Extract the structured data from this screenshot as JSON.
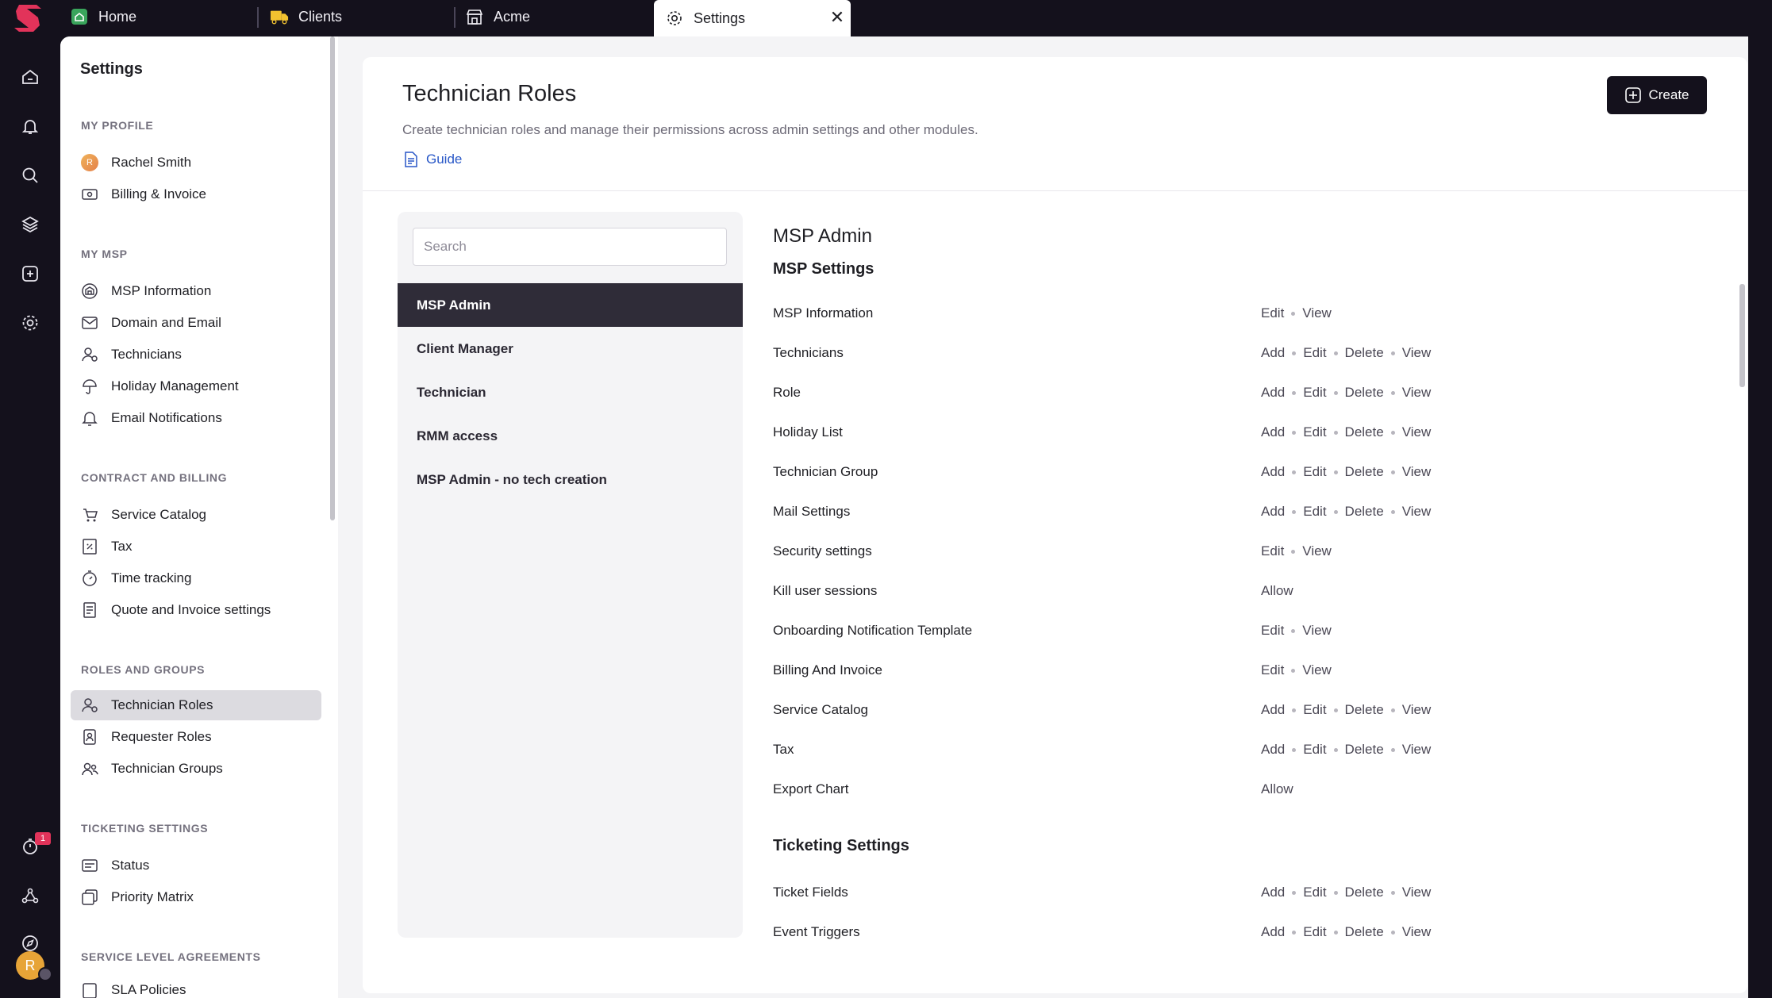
{
  "tabs": [
    {
      "label": "Home",
      "icon": "home-square-icon"
    },
    {
      "label": "Clients",
      "icon": "truck-icon"
    },
    {
      "label": "Acme",
      "icon": "store-icon"
    },
    {
      "label": "Settings",
      "icon": "gear-icon",
      "active": true
    }
  ],
  "rail": {
    "icons": [
      "home-icon",
      "bell-icon",
      "search-icon",
      "layers-icon",
      "add-square-icon",
      "gear-icon",
      "timer-icon",
      "network-icon",
      "compass-icon"
    ],
    "timer_badge": "1",
    "avatar_initial": "R"
  },
  "nav": {
    "title": "Settings",
    "sections": [
      {
        "label": "MY PROFILE",
        "items": [
          {
            "label": "Rachel Smith",
            "icon": "avatar-icon",
            "initial": "R"
          },
          {
            "label": "Billing & Invoice",
            "icon": "billing-icon"
          }
        ]
      },
      {
        "label": "MY MSP",
        "items": [
          {
            "label": "MSP Information",
            "icon": "building-icon"
          },
          {
            "label": "Domain and Email",
            "icon": "mail-icon"
          },
          {
            "label": "Technicians",
            "icon": "technician-icon"
          },
          {
            "label": "Holiday Management",
            "icon": "umbrella-icon"
          },
          {
            "label": "Email Notifications",
            "icon": "bell-icon"
          }
        ]
      },
      {
        "label": "CONTRACT AND BILLING",
        "items": [
          {
            "label": "Service Catalog",
            "icon": "catalog-icon"
          },
          {
            "label": "Tax",
            "icon": "tax-icon"
          },
          {
            "label": "Time tracking",
            "icon": "stopwatch-icon"
          },
          {
            "label": "Quote and Invoice settings",
            "icon": "receipt-icon"
          }
        ]
      },
      {
        "label": "ROLES AND GROUPS",
        "items": [
          {
            "label": "Technician Roles",
            "icon": "technician-role-icon",
            "active": true
          },
          {
            "label": "Requester Roles",
            "icon": "badge-icon"
          },
          {
            "label": "Technician Groups",
            "icon": "group-icon"
          }
        ]
      },
      {
        "label": "TICKETING SETTINGS",
        "items": [
          {
            "label": "Status",
            "icon": "status-icon"
          },
          {
            "label": "Priority Matrix",
            "icon": "matrix-icon"
          }
        ]
      },
      {
        "label": "SERVICE LEVEL AGREEMENTS",
        "items": [
          {
            "label": "SLA Policies",
            "icon": "sla-icon"
          }
        ]
      }
    ]
  },
  "page": {
    "title": "Technician Roles",
    "description": "Create technician roles and manage their permissions across admin settings and other modules.",
    "guide_label": "Guide",
    "create_label": "Create"
  },
  "roles": {
    "search_placeholder": "Search",
    "search_value": "",
    "items": [
      "MSP Admin",
      "Client Manager",
      "Technician",
      "RMM access",
      "MSP Admin - no tech creation"
    ],
    "selected": "MSP Admin"
  },
  "permissions": {
    "role_title": "MSP Admin",
    "sections": [
      {
        "title": "MSP Settings",
        "rows": [
          {
            "name": "MSP Information",
            "actions": [
              "Edit",
              "View"
            ]
          },
          {
            "name": "Technicians",
            "actions": [
              "Add",
              "Edit",
              "Delete",
              "View"
            ]
          },
          {
            "name": "Role",
            "actions": [
              "Add",
              "Edit",
              "Delete",
              "View"
            ]
          },
          {
            "name": "Holiday List",
            "actions": [
              "Add",
              "Edit",
              "Delete",
              "View"
            ]
          },
          {
            "name": "Technician Group",
            "actions": [
              "Add",
              "Edit",
              "Delete",
              "View"
            ]
          },
          {
            "name": "Mail Settings",
            "actions": [
              "Add",
              "Edit",
              "Delete",
              "View"
            ]
          },
          {
            "name": "Security settings",
            "actions": [
              "Edit",
              "View"
            ]
          },
          {
            "name": "Kill user sessions",
            "actions": [
              "Allow"
            ]
          },
          {
            "name": "Onboarding Notification Template",
            "actions": [
              "Edit",
              "View"
            ]
          },
          {
            "name": "Billing And Invoice",
            "actions": [
              "Edit",
              "View"
            ]
          },
          {
            "name": "Service Catalog",
            "actions": [
              "Add",
              "Edit",
              "Delete",
              "View"
            ]
          },
          {
            "name": "Tax",
            "actions": [
              "Add",
              "Edit",
              "Delete",
              "View"
            ]
          },
          {
            "name": "Export Chart",
            "actions": [
              "Allow"
            ]
          }
        ]
      },
      {
        "title": "Ticketing Settings",
        "rows": [
          {
            "name": "Ticket Fields",
            "actions": [
              "Add",
              "Edit",
              "Delete",
              "View"
            ]
          },
          {
            "name": "Event Triggers",
            "actions": [
              "Add",
              "Edit",
              "Delete",
              "View"
            ]
          }
        ]
      }
    ]
  },
  "colors": {
    "brand": "#e2335a",
    "dark": "#14111c",
    "selected_role": "#2f2c38",
    "link": "#2857c7"
  }
}
